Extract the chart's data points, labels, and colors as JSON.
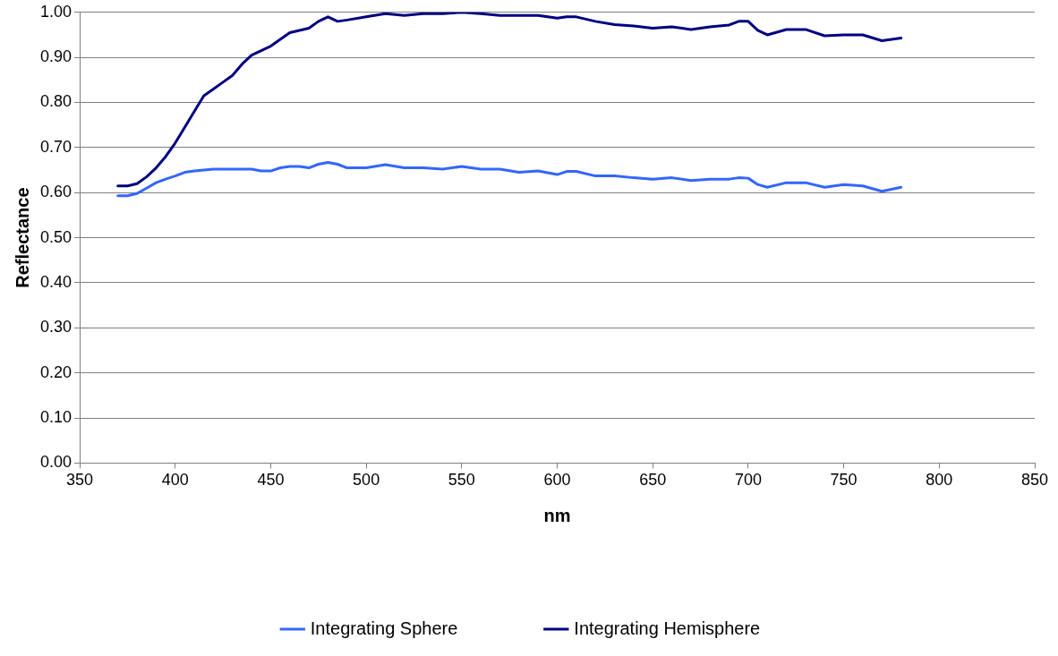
{
  "chart_data": {
    "type": "line",
    "xlabel": "nm",
    "ylabel": "Reflectance",
    "x": [
      370,
      375,
      380,
      385,
      390,
      395,
      400,
      405,
      410,
      415,
      420,
      425,
      430,
      435,
      440,
      445,
      450,
      455,
      460,
      465,
      470,
      475,
      480,
      485,
      490,
      500,
      510,
      520,
      530,
      540,
      550,
      560,
      570,
      580,
      590,
      600,
      605,
      610,
      620,
      630,
      640,
      650,
      660,
      670,
      680,
      690,
      695,
      700,
      705,
      710,
      720,
      730,
      740,
      750,
      760,
      770,
      780
    ],
    "series": [
      {
        "name": "Integrating Sphere",
        "color": "#3366ff",
        "values": [
          0.593,
          0.593,
          0.598,
          0.61,
          0.622,
          0.63,
          0.637,
          0.645,
          0.648,
          0.65,
          0.652,
          0.652,
          0.652,
          0.652,
          0.652,
          0.648,
          0.648,
          0.655,
          0.658,
          0.658,
          0.655,
          0.663,
          0.667,
          0.663,
          0.655,
          0.655,
          0.662,
          0.655,
          0.655,
          0.652,
          0.658,
          0.652,
          0.652,
          0.645,
          0.648,
          0.64,
          0.647,
          0.647,
          0.637,
          0.637,
          0.633,
          0.63,
          0.633,
          0.627,
          0.63,
          0.63,
          0.633,
          0.632,
          0.618,
          0.612,
          0.622,
          0.622,
          0.612,
          0.618,
          0.615,
          0.603,
          0.612
        ]
      },
      {
        "name": "Integrating Hemisphere",
        "color": "#000080",
        "values": [
          0.615,
          0.615,
          0.62,
          0.635,
          0.655,
          0.68,
          0.71,
          0.745,
          0.78,
          0.815,
          0.83,
          0.845,
          0.86,
          0.885,
          0.905,
          0.915,
          0.925,
          0.94,
          0.955,
          0.96,
          0.965,
          0.98,
          0.99,
          0.98,
          0.983,
          0.99,
          0.997,
          0.993,
          0.997,
          0.997,
          1.0,
          0.997,
          0.993,
          0.993,
          0.993,
          0.987,
          0.99,
          0.99,
          0.98,
          0.973,
          0.97,
          0.965,
          0.968,
          0.962,
          0.968,
          0.972,
          0.98,
          0.98,
          0.96,
          0.95,
          0.962,
          0.962,
          0.948,
          0.95,
          0.95,
          0.937,
          0.943
        ]
      }
    ],
    "xlim": [
      350,
      850
    ],
    "xticks": [
      350,
      400,
      450,
      500,
      550,
      600,
      650,
      700,
      750,
      800,
      850
    ],
    "ylim": [
      0,
      1
    ],
    "yticks": [
      {
        "value": 0,
        "label": "0.00"
      },
      {
        "value": 0.1,
        "label": "0.10"
      },
      {
        "value": 0.2,
        "label": "0.20"
      },
      {
        "value": 0.3,
        "label": "0.30"
      },
      {
        "value": 0.4,
        "label": "0.40"
      },
      {
        "value": 0.5,
        "label": "0.50"
      },
      {
        "value": 0.6,
        "label": "0.60"
      },
      {
        "value": 0.7,
        "label": "0.70"
      },
      {
        "value": 0.8,
        "label": "0.80"
      },
      {
        "value": 0.9,
        "label": "0.90"
      },
      {
        "value": 1,
        "label": "1.00"
      }
    ],
    "grid": "y",
    "legend": "bottom",
    "marker": "none",
    "line_style": "solid"
  }
}
